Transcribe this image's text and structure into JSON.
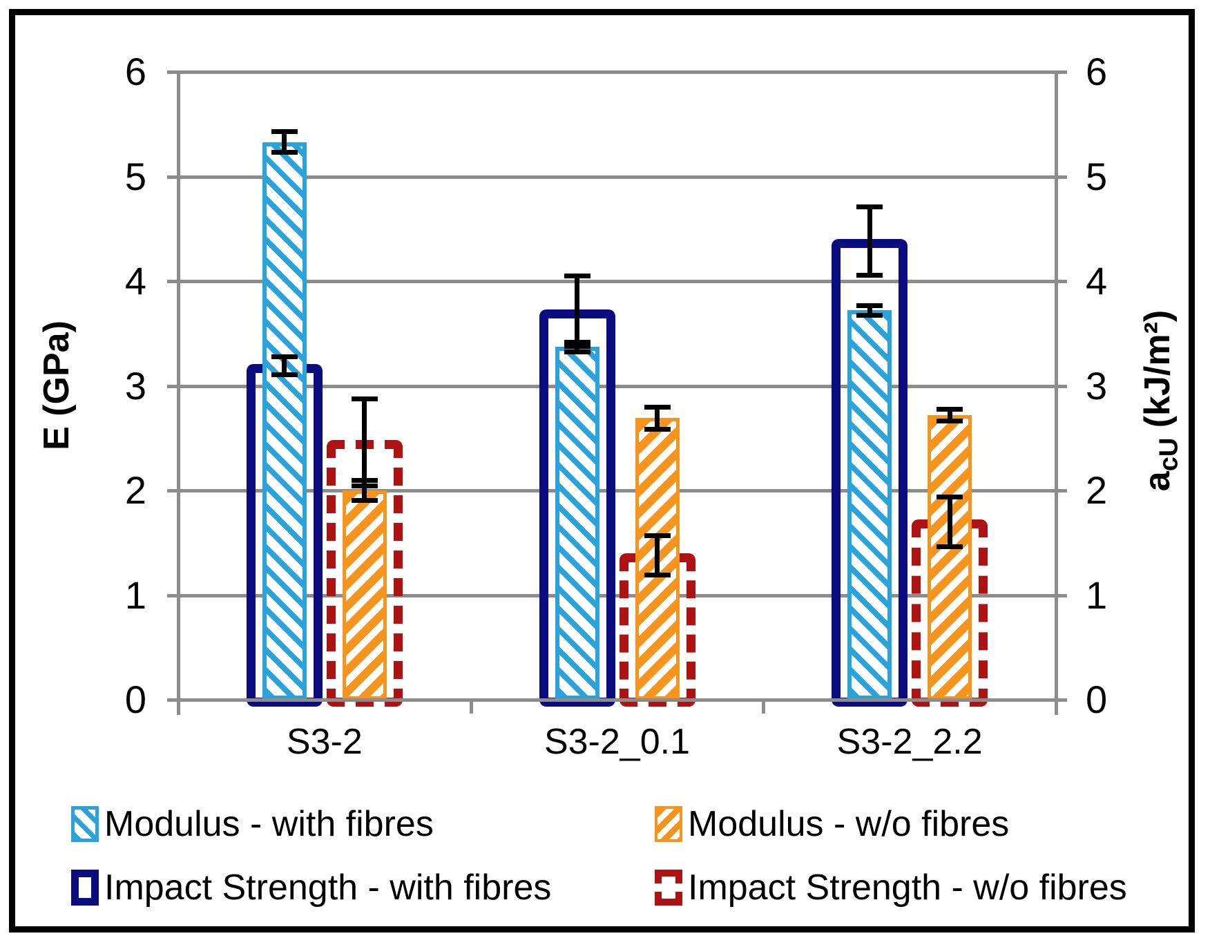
{
  "figure": {
    "background": "#FFFFFF",
    "border_color": "#000000",
    "gridline_color": "#8C8C8C"
  },
  "left_axis": {
    "title": "E (GPa)",
    "min": 0,
    "max": 6,
    "ticks": [
      0,
      1,
      2,
      3,
      4,
      5,
      6
    ]
  },
  "right_axis": {
    "title_base": "a",
    "title_sub": "cU",
    "title_unit": " (kJ/m²)",
    "min": 0,
    "max": 6,
    "ticks": [
      0,
      1,
      2,
      3,
      4,
      5,
      6
    ]
  },
  "chart_data": {
    "type": "bar",
    "title": "",
    "xlabel": "",
    "ylabel_left": "E (GPa)",
    "ylabel_right": "a_cU (kJ/m²)",
    "ylim": [
      0,
      6
    ],
    "grid": "horizontal",
    "legend_position": "bottom",
    "categories": [
      "S3-2",
      "S3-2_0.1",
      "S3-2_2.2"
    ],
    "series": [
      {
        "name": "Modulus - with fibres",
        "axis": "left",
        "style": "hatch",
        "hatch_direction": "\\",
        "color": "#2AA3DC",
        "values": [
          5.33,
          3.37,
          3.72
        ],
        "errors": [
          0.1,
          0.05,
          0.05
        ]
      },
      {
        "name": "Modulus - w/o fibres",
        "axis": "left",
        "style": "hatch",
        "hatch_direction": "/",
        "color": "#F7941E",
        "values": [
          2.0,
          2.69,
          2.72
        ],
        "errors": [
          0.1,
          0.11,
          0.06
        ]
      },
      {
        "name": "Impact Strength - with fibres",
        "axis": "right",
        "style": "outline",
        "color": "#0B0B80",
        "values": [
          3.19,
          3.71,
          4.38
        ],
        "errors": [
          0.09,
          0.34,
          0.33
        ]
      },
      {
        "name": "Impact Strength - w/o fibres",
        "axis": "right",
        "style": "outline-dashed",
        "color": "#AE1212",
        "values": [
          2.46,
          1.38,
          1.7
        ],
        "errors": [
          0.42,
          0.19,
          0.24
        ]
      }
    ]
  }
}
